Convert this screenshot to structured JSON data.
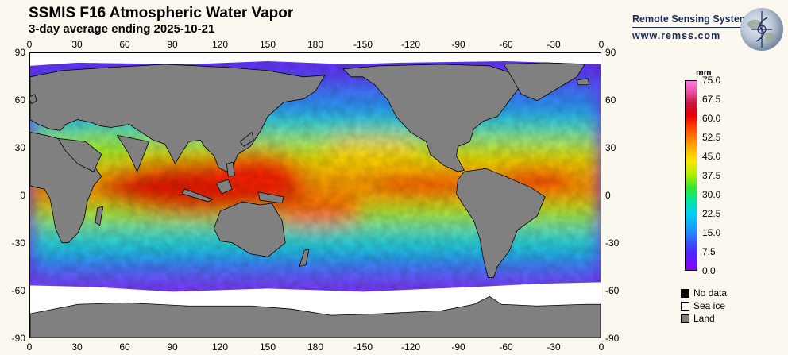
{
  "header": {
    "title": "SSMIS F16 Atmospheric Water Vapor",
    "subtitle": "3-day average ending 2025-10-21"
  },
  "brand": {
    "name": "Remote Sensing Systems",
    "url": "www.remss.com"
  },
  "axes": {
    "lon_ticks": [
      "0",
      "30",
      "60",
      "90",
      "120",
      "150",
      "180",
      "-150",
      "-120",
      "-90",
      "-60",
      "-30",
      "0"
    ],
    "lat_ticks": [
      "90",
      "60",
      "30",
      "0",
      "-30",
      "-60",
      "-90"
    ]
  },
  "colorbar": {
    "unit": "mm",
    "labels": [
      "75.0",
      "67.5",
      "60.0",
      "52.5",
      "45.0",
      "37.5",
      "30.0",
      "22.5",
      "15.0",
      "7.5",
      "0.0"
    ],
    "range": [
      0,
      75
    ]
  },
  "legend": [
    {
      "label": "No data",
      "color": "#000000"
    },
    {
      "label": "Sea ice",
      "color": "#ffffff"
    },
    {
      "label": "Land",
      "color": "#808080"
    }
  ],
  "colors": {
    "background": "#fbf8f0",
    "land": "#808080",
    "sea_ice": "#ffffff"
  }
}
